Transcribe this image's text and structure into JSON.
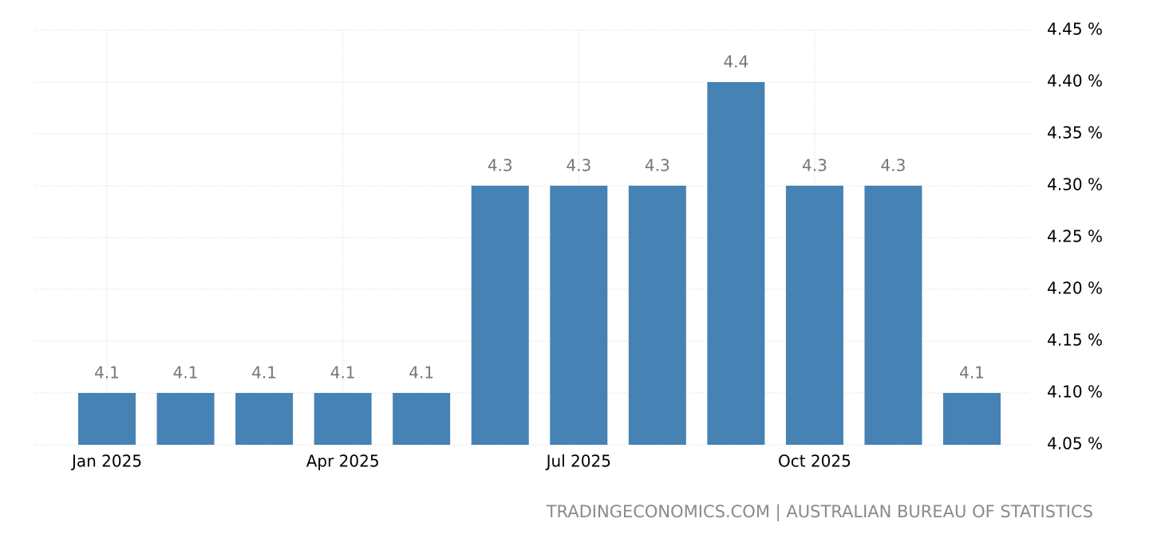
{
  "chart_data": {
    "type": "bar",
    "categories": [
      "Jan 2025",
      null,
      null,
      "Apr 2025",
      null,
      null,
      "Jul 2025",
      null,
      null,
      "Oct 2025",
      null,
      null
    ],
    "values": [
      4.1,
      4.1,
      4.1,
      4.1,
      4.1,
      4.3,
      4.3,
      4.3,
      4.4,
      4.3,
      4.3,
      4.1
    ],
    "color": "#4682b4",
    "ylim": [
      4.05,
      4.45
    ],
    "yticks": [
      {
        "value": 4.05,
        "label": "4.05 %"
      },
      {
        "value": 4.1,
        "label": "4.10 %"
      },
      {
        "value": 4.15,
        "label": "4.15 %"
      },
      {
        "value": 4.2,
        "label": "4.20 %"
      },
      {
        "value": 4.25,
        "label": "4.25 %"
      },
      {
        "value": 4.3,
        "label": "4.30 %"
      },
      {
        "value": 4.35,
        "label": "4.35 %"
      },
      {
        "value": 4.4,
        "label": "4.40 %"
      },
      {
        "value": 4.45,
        "label": "4.45 %"
      }
    ],
    "grid": true,
    "source": "TRADINGECONOMICS.COM | AUSTRALIAN BUREAU OF STATISTICS"
  }
}
